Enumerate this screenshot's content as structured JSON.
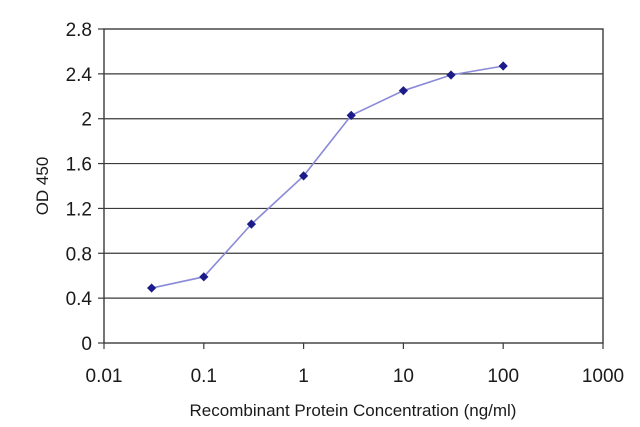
{
  "chart_data": {
    "type": "line",
    "title": "",
    "xlabel": "Recombinant Protein Concentration (ng/ml)",
    "ylabel": "OD 450",
    "x_scale": "log",
    "xlim": [
      0.01,
      1000
    ],
    "ylim": [
      0,
      2.8
    ],
    "x_ticks": [
      "0.01",
      "0.1",
      "1",
      "10",
      "100",
      "1000"
    ],
    "y_ticks": [
      "0",
      "0.4",
      "0.8",
      "1.2",
      "1.6",
      "2",
      "2.4",
      "2.8"
    ],
    "grid": "horizontal",
    "legend": "none",
    "series": [
      {
        "x": [
          0.03,
          0.1,
          0.3,
          1,
          3,
          10,
          30,
          100
        ],
        "y": [
          0.49,
          0.59,
          1.06,
          1.49,
          2.03,
          2.25,
          2.39,
          2.47
        ],
        "line_color": "#8a8ad8",
        "marker_color": "#1b1b8a"
      }
    ]
  }
}
